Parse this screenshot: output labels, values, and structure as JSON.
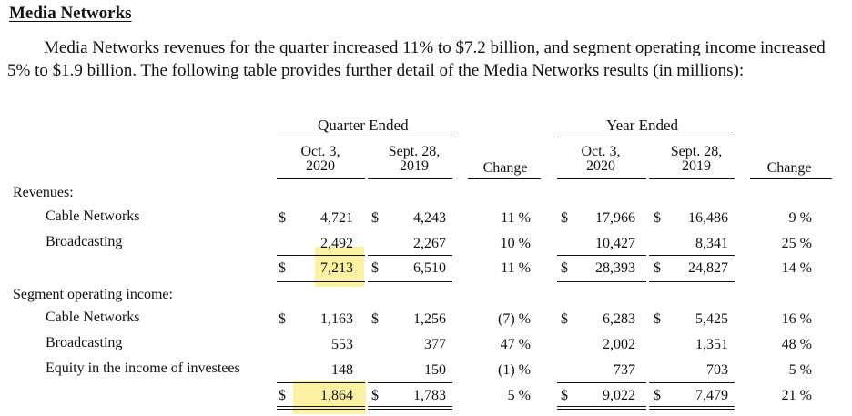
{
  "heading": "Media Networks",
  "paragraph": "Media Networks revenues for the quarter increased 11% to $7.2 billion, and segment operating income increased 5% to $1.9 billion. The following table provides further detail of the Media Networks results (in millions):",
  "table": {
    "group_quarter": "Quarter Ended",
    "group_year": "Year Ended",
    "columns": {
      "q1": [
        "Oct. 3,",
        "2020"
      ],
      "q2": [
        "Sept. 28,",
        "2019"
      ],
      "change": "Change",
      "y1": [
        "Oct. 3,",
        "2020"
      ],
      "y2": [
        "Sept. 28,",
        "2019"
      ]
    },
    "dollar": "$",
    "revenues": {
      "header": "Revenues:",
      "rows": [
        {
          "label": "Cable Networks",
          "q1": "4,721",
          "q2": "4,243",
          "qchg": "11 %",
          "y1": "17,966",
          "y2": "16,486",
          "ychg": "9 %"
        },
        {
          "label": "Broadcasting",
          "q1": "2,492",
          "q2": "2,267",
          "qchg": "10 %",
          "y1": "10,427",
          "y2": "8,341",
          "ychg": "25 %"
        }
      ],
      "total": {
        "q1": "7,213",
        "q2": "6,510",
        "qchg": "11 %",
        "y1": "28,393",
        "y2": "24,827",
        "ychg": "14 %"
      }
    },
    "segment": {
      "header": "Segment operating income:",
      "rows": [
        {
          "label": "Cable Networks",
          "q1": "1,163",
          "q2": "1,256",
          "qchg": "(7) %",
          "y1": "6,283",
          "y2": "5,425",
          "ychg": "16 %"
        },
        {
          "label": "Broadcasting",
          "q1": "553",
          "q2": "377",
          "qchg": "47 %",
          "y1": "2,002",
          "y2": "1,351",
          "ychg": "48 %"
        },
        {
          "label": "Equity in the income of investees",
          "q1": "148",
          "q2": "150",
          "qchg": "(1) %",
          "y1": "737",
          "y2": "703",
          "ychg": "5 %"
        }
      ],
      "total": {
        "q1": "1,864",
        "q2": "1,783",
        "qchg": "5 %",
        "y1": "9,022",
        "y2": "7,479",
        "ychg": "21 %"
      }
    }
  }
}
